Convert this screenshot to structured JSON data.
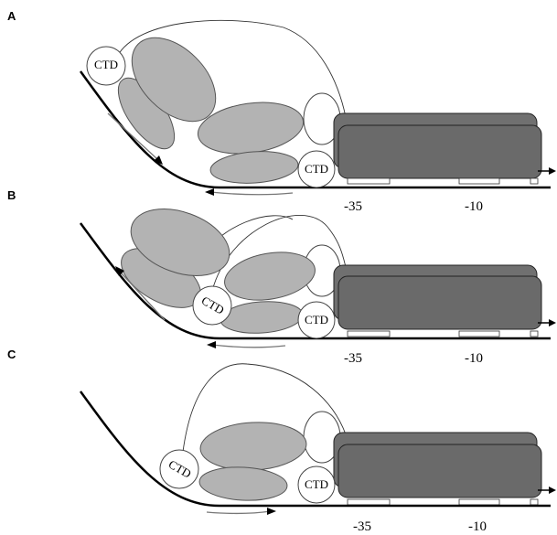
{
  "panels": [
    {
      "label": "A",
      "ctd": [
        "CTD",
        "CTD"
      ],
      "positions": [
        "-35",
        "-10"
      ]
    },
    {
      "label": "B",
      "ctd": [
        "CTD",
        "CTD"
      ],
      "positions": [
        "-35",
        "-10"
      ]
    },
    {
      "label": "C",
      "ctd": [
        "CTD",
        "CTD"
      ],
      "positions": [
        "-35",
        "-10"
      ]
    }
  ]
}
